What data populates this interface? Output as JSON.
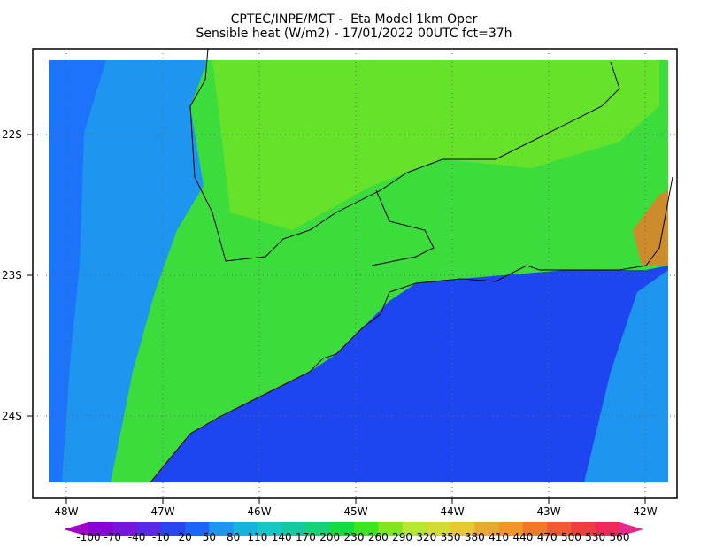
{
  "header": {
    "title_line1": "CPTEC/INPE/MCT -  Eta Model 1km Oper",
    "title_line2": "Sensible heat (W/m2) - 17/01/2022 00UTC fct=37h"
  },
  "axes": {
    "lat_labels": [
      "22S",
      "23S",
      "24S"
    ],
    "lon_labels": [
      "48W",
      "47W",
      "46W",
      "45W",
      "44W",
      "43W",
      "42W"
    ]
  },
  "colorbar": {
    "levels": [
      -100,
      -70,
      -40,
      -10,
      20,
      50,
      80,
      110,
      140,
      170,
      200,
      230,
      260,
      290,
      320,
      350,
      380,
      410,
      440,
      470,
      500,
      530,
      560
    ],
    "colors": [
      "#a000c8",
      "#8c00d8",
      "#7814dc",
      "#5a28e6",
      "#2846f0",
      "#1e64ff",
      "#1e96f0",
      "#14b4dc",
      "#14c8c8",
      "#14c8a0",
      "#14d278",
      "#14dc3c",
      "#3ce61e",
      "#82e61e",
      "#b4e632",
      "#d2dc32",
      "#e6c832",
      "#e6aa32",
      "#f09628",
      "#f07828",
      "#f05a32",
      "#f03c3c",
      "#f0285a",
      "#e6288c"
    ]
  }
}
